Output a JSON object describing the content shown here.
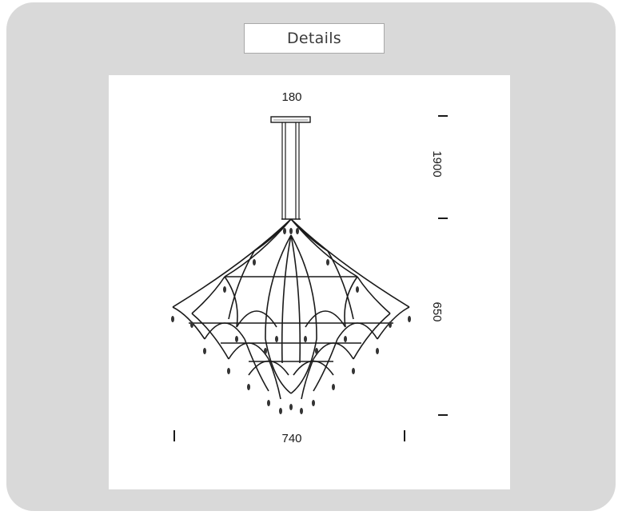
{
  "tab": {
    "label": "Details"
  },
  "drawing": {
    "dimensions": {
      "canopy_width": "180",
      "cable_length": "1900",
      "body_height": "650",
      "body_width": "740"
    }
  },
  "colors": {
    "panel_background": "#d9d9d9",
    "line": "#1a1a1a"
  }
}
